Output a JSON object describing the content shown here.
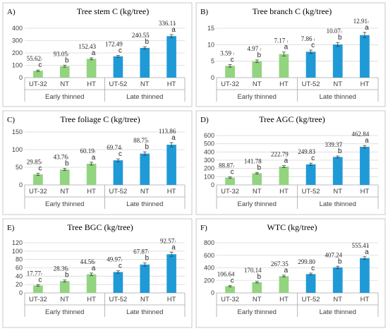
{
  "colors": {
    "early": "#92d47f",
    "late": "#1f9ad6"
  },
  "chart_data": [
    {
      "type": "bar",
      "letter": "A)",
      "title": "Tree stem C (kg/tree)",
      "categories": [
        "UT-32",
        "NT",
        "HT",
        "UT-52",
        "NT",
        "HT"
      ],
      "groups": [
        "Early thinned",
        "Late thinned"
      ],
      "values": [
        55.62,
        93.05,
        152.43,
        172.49,
        240.55,
        336.11
      ],
      "labels": [
        "55.62",
        "93.05",
        "152.43",
        "172.49",
        "240.55",
        "336.11"
      ],
      "errors": [
        6,
        8,
        8,
        7,
        10,
        12
      ],
      "significance": [
        "c",
        "b",
        "a",
        "c",
        "b",
        "a"
      ],
      "ylim": [
        0,
        400
      ],
      "yticks": [
        0,
        100,
        200,
        300,
        400
      ],
      "grid": true
    },
    {
      "type": "bar",
      "letter": "B)",
      "title": "Tree branch C (kg/tree)",
      "categories": [
        "UT-32",
        "NT",
        "HT",
        "UT-52",
        "NT",
        "HT"
      ],
      "groups": [
        "Early thinned",
        "Late thinned"
      ],
      "values": [
        3.59,
        4.97,
        7.17,
        7.86,
        10.07,
        12.91
      ],
      "labels": [
        "3.59",
        "4.97",
        "7.17",
        "7.86",
        "10.07",
        "12.91"
      ],
      "errors": [
        0.4,
        0.4,
        0.6,
        0.5,
        0.6,
        0.8
      ],
      "significance": [
        "c",
        "b",
        "a",
        "c",
        "b",
        "a"
      ],
      "ylim": [
        0,
        15
      ],
      "yticks": [
        0,
        5,
        10,
        15
      ],
      "grid": true
    },
    {
      "type": "bar",
      "letter": "C)",
      "title": "Tree foliage C (kg/tree)",
      "categories": [
        "UT-32",
        "NT",
        "HT",
        "UT-52",
        "NT",
        "HT"
      ],
      "groups": [
        "Early thinned",
        "Late thinned"
      ],
      "values": [
        29.85,
        43.76,
        60.19,
        69.74,
        88.75,
        113.86
      ],
      "labels": [
        "29.85",
        "43.76",
        "60.19",
        "69.74",
        "88.75",
        "113.86"
      ],
      "errors": [
        3,
        3,
        4,
        4,
        5,
        6
      ],
      "significance": [
        "c",
        "b",
        "a",
        "c",
        "b",
        "a"
      ],
      "ylim": [
        0,
        150
      ],
      "yticks": [
        0,
        50,
        100,
        150
      ],
      "grid": true
    },
    {
      "type": "bar",
      "letter": "D)",
      "title": "Tree AGC (kg/tree)",
      "categories": [
        "UT-32",
        "NT",
        "HT",
        "UT-52",
        "NT",
        "HT"
      ],
      "groups": [
        "Early thinned",
        "Late thinned"
      ],
      "values": [
        88.87,
        141.78,
        222.79,
        249.83,
        339.37,
        462.84
      ],
      "labels": [
        "88.87",
        "141.78",
        "222.79",
        "249.83",
        "339.37",
        "462.84"
      ],
      "errors": [
        8,
        10,
        12,
        14,
        12,
        16
      ],
      "significance": [
        "c",
        "b",
        "a",
        "c",
        "b",
        "a"
      ],
      "ylim": [
        0,
        600
      ],
      "yticks": [
        0,
        100,
        200,
        300,
        400,
        500,
        600
      ],
      "grid": true
    },
    {
      "type": "bar",
      "letter": "E)",
      "title": "Tree BGC (kg/tree)",
      "categories": [
        "UT-32",
        "NT",
        "HT",
        "UT-52",
        "NT",
        "HT"
      ],
      "groups": [
        "Early thinned",
        "Late thinned"
      ],
      "values": [
        17.77,
        28.36,
        44.56,
        49.97,
        67.87,
        92.57
      ],
      "labels": [
        "17.77",
        "28.36",
        "44.56",
        "49.97",
        "67.87",
        "92.57"
      ],
      "errors": [
        2,
        2.5,
        3,
        3,
        4,
        5
      ],
      "significance": [
        "c",
        "b",
        "a",
        "c",
        "b",
        "a"
      ],
      "ylim": [
        0,
        120
      ],
      "yticks": [
        0,
        20,
        40,
        60,
        80,
        100,
        120
      ],
      "grid": true
    },
    {
      "type": "bar",
      "letter": "F)",
      "title": "WTC (kg/tree)",
      "categories": [
        "UT-32",
        "NT",
        "HT",
        "UT-52",
        "NT",
        "HT"
      ],
      "groups": [
        "Early thinned",
        "Late thinned"
      ],
      "values": [
        106.64,
        170.14,
        267.35,
        299.8,
        407.24,
        555.41
      ],
      "labels": [
        "106.64",
        "170.14",
        "267.35",
        "299.80",
        "407.24",
        "555.41"
      ],
      "errors": [
        10,
        12,
        15,
        16,
        18,
        22
      ],
      "significance": [
        "c",
        "b",
        "a",
        "c",
        "b",
        "a"
      ],
      "ylim": [
        0,
        800
      ],
      "yticks": [
        0,
        200,
        400,
        600,
        800
      ],
      "grid": true
    }
  ]
}
